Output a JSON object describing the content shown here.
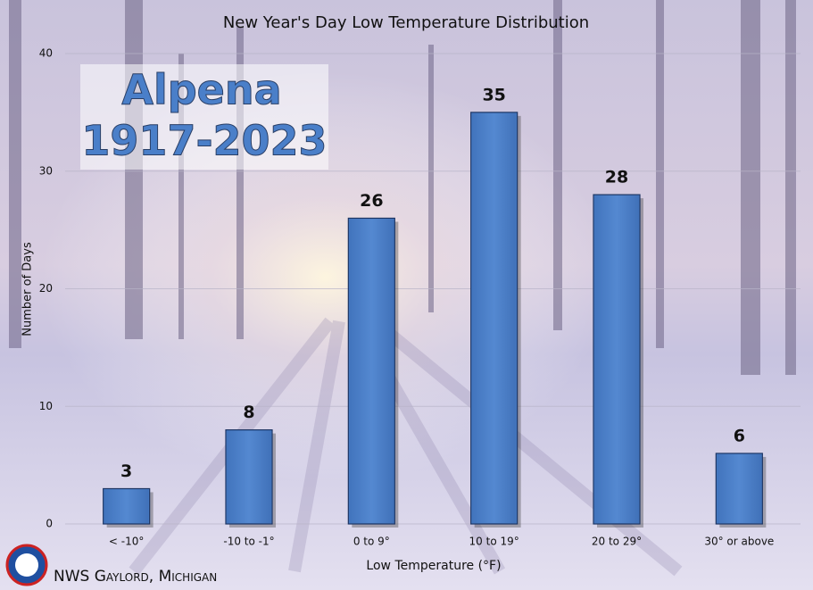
{
  "chart_data": {
    "type": "bar",
    "title": "New Year's Day Low Temperature Distribution",
    "categories": [
      "< -10°",
      "-10 to -1°",
      "0 to 9°",
      "10 to 19°",
      "20 to 29°",
      "30° or above"
    ],
    "values": [
      3,
      8,
      26,
      35,
      28,
      6
    ],
    "color": "#4a7fc9",
    "ylim": [
      0,
      40
    ],
    "yticks": [
      0,
      10,
      20,
      30,
      40
    ],
    "grid": true,
    "y_label": "Number of Days",
    "x_label": "Low Temperature (°F)",
    "annotations": [
      "Alpena",
      "1917-2023"
    ],
    "footer": "NWS Gaylord, Michigan"
  }
}
